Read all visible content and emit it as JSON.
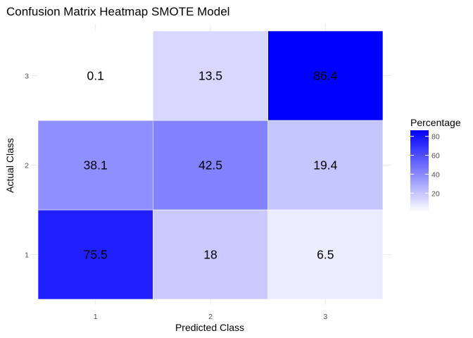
{
  "chart_data": {
    "type": "heatmap",
    "title": "Confusion Matrix Heatmap SMOTE Model",
    "xlabel": "Predicted Class",
    "ylabel": "Actual Class",
    "x_categories": [
      "1",
      "2",
      "3"
    ],
    "y_categories": [
      "1",
      "2",
      "3"
    ],
    "cells": [
      {
        "actual": "1",
        "predicted": "1",
        "value": 75.5,
        "label": "75.5"
      },
      {
        "actual": "1",
        "predicted": "2",
        "value": 18,
        "label": "18"
      },
      {
        "actual": "1",
        "predicted": "3",
        "value": 6.5,
        "label": "6.5"
      },
      {
        "actual": "2",
        "predicted": "1",
        "value": 38.1,
        "label": "38.1"
      },
      {
        "actual": "2",
        "predicted": "2",
        "value": 42.5,
        "label": "42.5"
      },
      {
        "actual": "2",
        "predicted": "3",
        "value": 19.4,
        "label": "19.4"
      },
      {
        "actual": "3",
        "predicted": "1",
        "value": 0.1,
        "label": "0.1"
      },
      {
        "actual": "3",
        "predicted": "2",
        "value": 13.5,
        "label": "13.5"
      },
      {
        "actual": "3",
        "predicted": "3",
        "value": 86.4,
        "label": "86.4"
      }
    ],
    "legend": {
      "title": "Percentage",
      "ticks": [
        20,
        40,
        60,
        80
      ],
      "range": [
        0.1,
        86.4
      ],
      "placement": "right"
    },
    "colors": {
      "low": "#ffffff",
      "high": "#0000ff",
      "grid": "#ebebeb"
    },
    "grid": true
  }
}
